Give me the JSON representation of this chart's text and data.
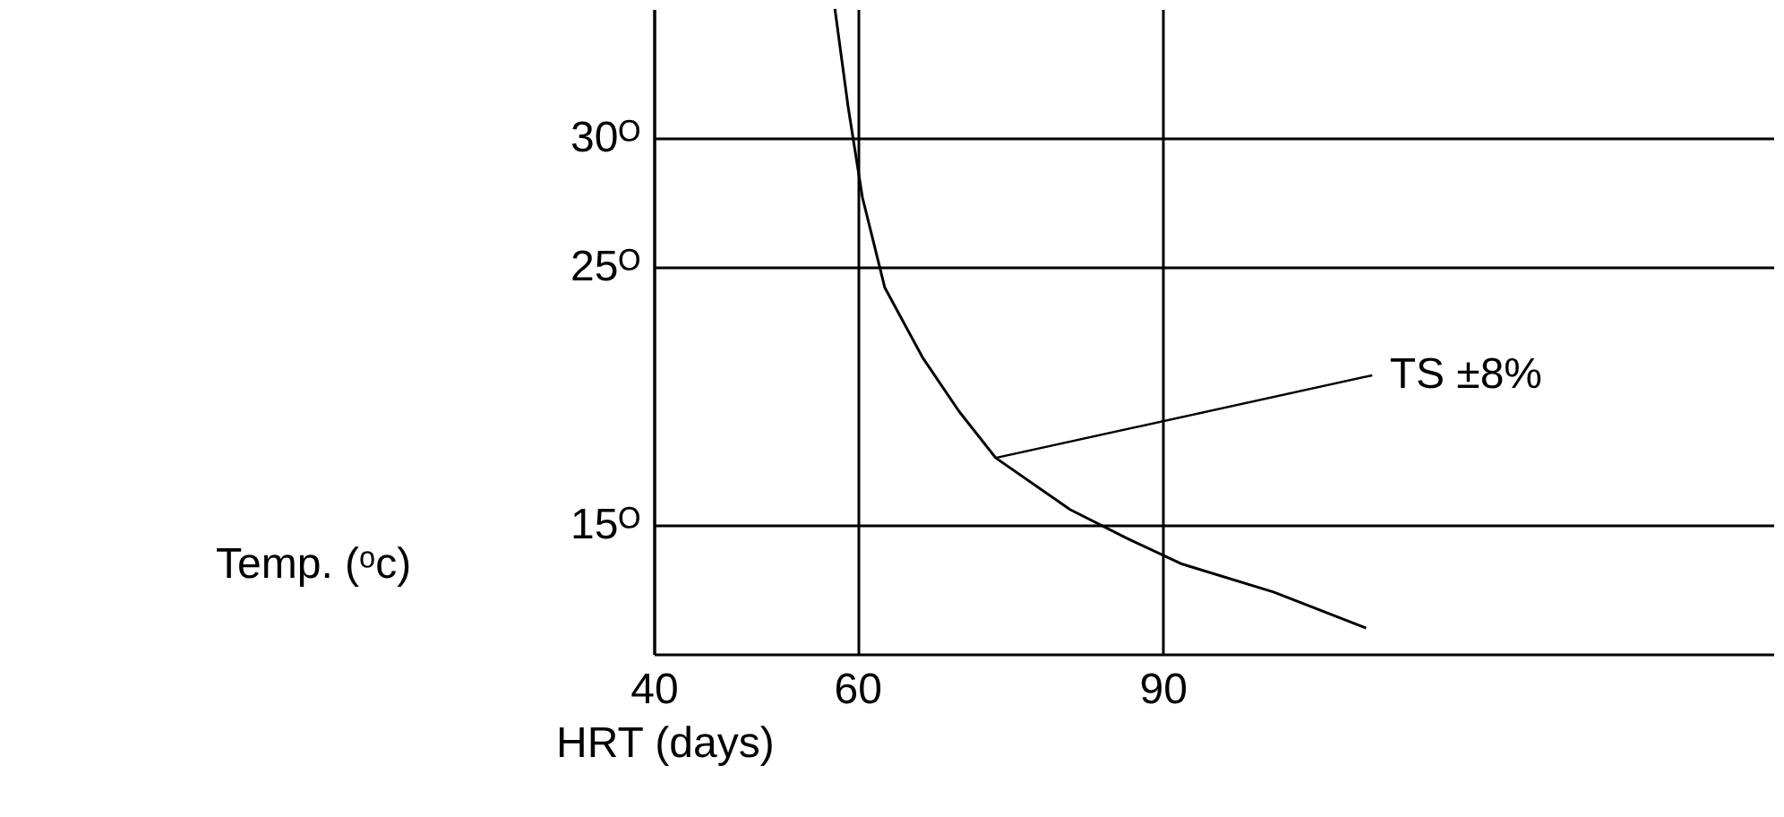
{
  "chart_data": {
    "type": "line",
    "xlabel": "HRT (days)",
    "ylabel": "Temp. (ᵒc)",
    "x": [
      57.8,
      59.1,
      60.5,
      62.7,
      66.4,
      70.0,
      73.6,
      80.9,
      86.4,
      91.8,
      100.9,
      110
    ],
    "values": [
      35,
      31.2,
      27.7,
      24.2,
      21.5,
      19.4,
      17.6,
      15.6,
      14.5,
      13.5,
      12.4,
      11.0
    ],
    "color": "#000000",
    "xlim": [
      40,
      150
    ],
    "ylim": [
      10,
      35
    ],
    "xticks": [
      40,
      60,
      90
    ],
    "yticks": [
      {
        "value": 15,
        "label": "15ᴼ"
      },
      {
        "value": 25,
        "label": "25ᴼ"
      },
      {
        "value": 30,
        "label": "30ᴼ"
      }
    ],
    "grid": true,
    "marker": "none",
    "annotations": [
      {
        "text": "TS ±8%",
        "x": 73.6,
        "y": 17.6
      }
    ]
  }
}
